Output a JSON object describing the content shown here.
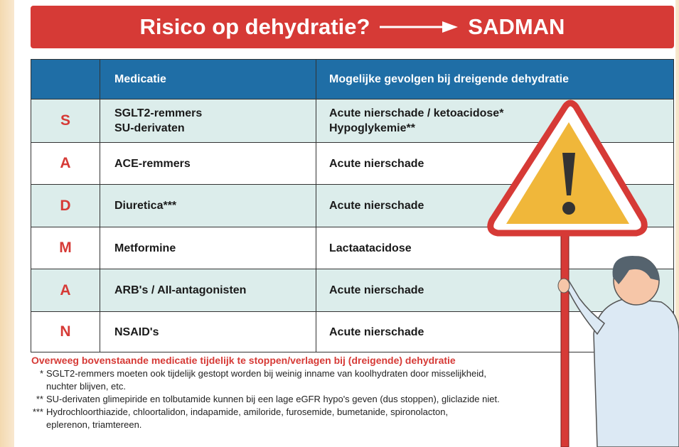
{
  "title": {
    "left": "Risico op dehydratie?",
    "right": "SADMAN"
  },
  "table": {
    "header": {
      "medication": "Medicatie",
      "effect": "Mogelijke gevolgen bij dreigende dehydratie"
    },
    "rows": [
      {
        "letter": "S",
        "medication": [
          "SGLT2-remmers",
          "SU-derivaten"
        ],
        "effect": [
          "Acute nierschade / ketoacidose*",
          "Hypoglykemie**"
        ]
      },
      {
        "letter": "A",
        "medication": [
          "ACE-remmers"
        ],
        "effect": [
          "Acute nierschade"
        ]
      },
      {
        "letter": "D",
        "medication": [
          "Diuretica***"
        ],
        "effect": [
          "Acute nierschade"
        ]
      },
      {
        "letter": "M",
        "medication": [
          "Metformine"
        ],
        "effect": [
          "Lactaatacidose"
        ]
      },
      {
        "letter": "A",
        "medication": [
          "ARB's / AII-antagonisten"
        ],
        "effect": [
          "Acute nierschade"
        ]
      },
      {
        "letter": "N",
        "medication": [
          "NSAID's"
        ],
        "effect": [
          "Acute nierschade"
        ]
      }
    ]
  },
  "notes": {
    "heading": "Overweeg bovenstaande medicatie tijdelijk te stoppen/verlagen bij (dreigende) dehydratie",
    "items": [
      {
        "marker": "*",
        "lines": [
          "SGLT2-remmers moeten ook tijdelijk gestopt worden bij weinig inname van koolhydraten door misselijkheid,",
          "nuchter blijven, etc."
        ]
      },
      {
        "marker": "**",
        "lines": [
          "SU-derivaten glimepiride en tolbutamide kunnen bij een lage eGFR hypo's geven (dus stoppen), gliclazide niet."
        ]
      },
      {
        "marker": "***",
        "lines": [
          "Hydrochloorthiazide, chloortalidon, indapamide, amiloride, furosemide, bumetanide, spironolacton,",
          "eplerenon, triamtereen."
        ]
      }
    ]
  }
}
